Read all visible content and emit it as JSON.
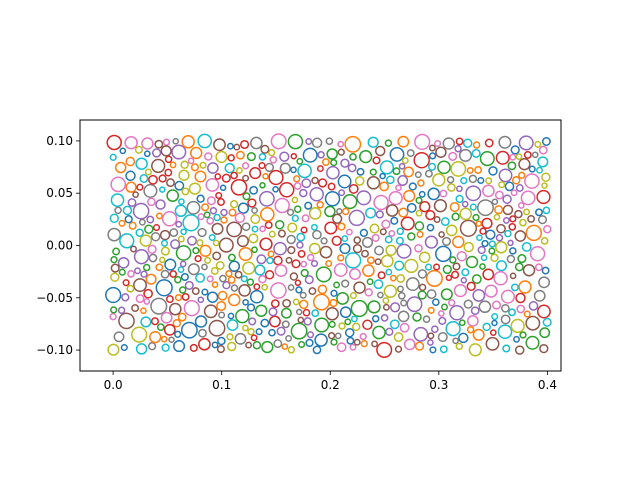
{
  "chart_data": {
    "type": "scatter",
    "marker": "open-circle",
    "title": "",
    "xlabel": "",
    "ylabel": "",
    "xlim": [
      -0.0305,
      0.4125
    ],
    "ylim": [
      -0.12,
      0.12
    ],
    "x_ticks": [
      0.0,
      0.1,
      0.2,
      0.3,
      0.4
    ],
    "x_tick_labels": [
      "0.0",
      "0.1",
      "0.2",
      "0.3",
      "0.4"
    ],
    "y_ticks": [
      -0.1,
      -0.05,
      0.0,
      0.05,
      0.1
    ],
    "y_tick_labels": [
      "−0.10",
      "−0.05",
      "0.00",
      "0.05",
      "0.10"
    ],
    "grid": false,
    "legend": "none",
    "color_cycle": [
      "#1f77b4",
      "#ff7f0e",
      "#2ca02c",
      "#d62728",
      "#9467bd",
      "#8c564b",
      "#e377c2",
      "#7f7f7f",
      "#bcbd22",
      "#17becf"
    ],
    "x_range_of_points": [
      0.0,
      0.4
    ],
    "y_range_of_points": [
      -0.1,
      0.1
    ],
    "approx_point_count": 750
  }
}
